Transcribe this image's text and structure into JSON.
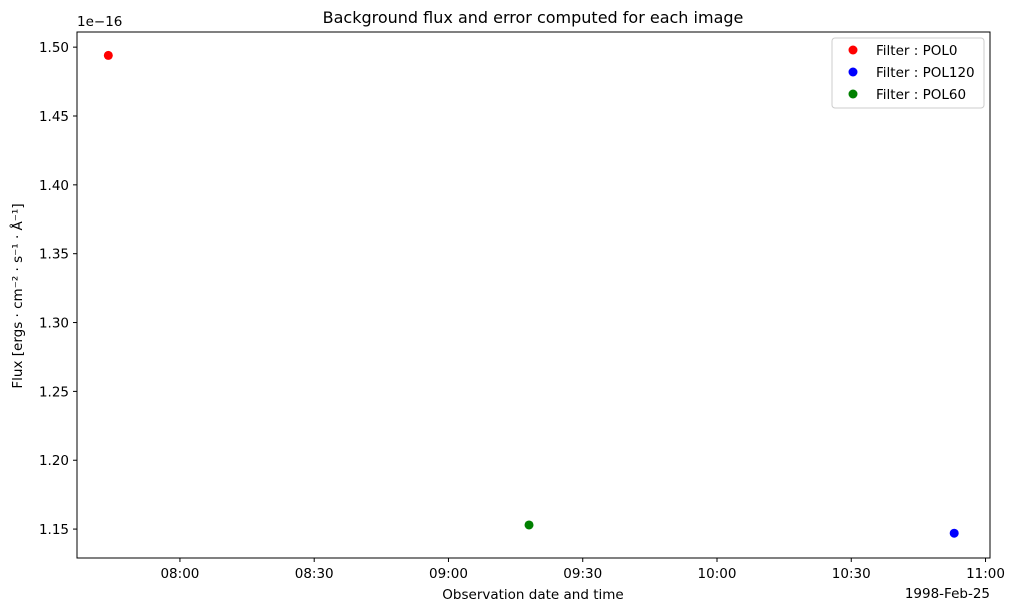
{
  "chart_data": {
    "type": "scatter",
    "title": "Background flux and error computed for each image",
    "xlabel": "Observation date and time",
    "ylabel": "Flux [ergs · cm⁻² · s⁻¹ · Å⁻¹]",
    "y_offset_text": "1e−16",
    "x_offset_text": "1998-Feb-25",
    "x_ticks": [
      "08:00",
      "08:30",
      "09:00",
      "09:30",
      "10:00",
      "10:30",
      "11:00"
    ],
    "y_ticks": [
      "1.15",
      "1.20",
      "1.25",
      "1.30",
      "1.35",
      "1.40",
      "1.45",
      "1.50"
    ],
    "xlim": [
      "07:37",
      "11:01"
    ],
    "ylim": [
      1.129,
      1.511
    ],
    "grid": false,
    "legend_position": "top-right",
    "series": [
      {
        "name": "Filter : POL0",
        "color": "#ff0000",
        "x": [
          "07:44"
        ],
        "y": [
          1.494
        ]
      },
      {
        "name": "Filter : POL120",
        "color": "#0000ff",
        "x": [
          "10:53"
        ],
        "y": [
          1.147
        ]
      },
      {
        "name": "Filter : POL60",
        "color": "#008000",
        "x": [
          "09:18"
        ],
        "y": [
          1.153
        ]
      }
    ]
  }
}
